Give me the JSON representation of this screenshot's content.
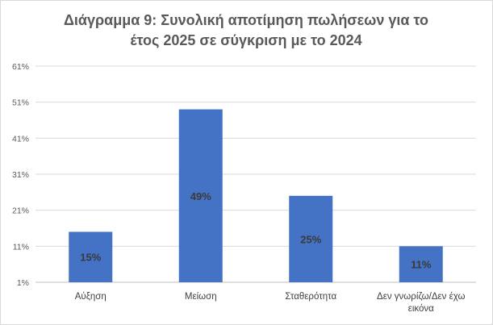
{
  "chart_data": {
    "type": "bar",
    "title_lines": [
      "Διάγραμμα 9: Συνολική αποτίμηση πωλήσεων για το",
      "έτος 2025 σε σύγκριση με το 2024"
    ],
    "categories": [
      [
        "Αύξηση"
      ],
      [
        "Μείωση"
      ],
      [
        "Σταθερότητα"
      ],
      [
        "Δεν γνωρίζω/Δεν έχω",
        "εικόνα"
      ]
    ],
    "values": [
      15,
      49,
      25,
      11
    ],
    "data_labels": [
      "15%",
      "49%",
      "25%",
      "11%"
    ],
    "ylim": [
      1,
      61
    ],
    "yticks": [
      1,
      11,
      21,
      31,
      41,
      51,
      61
    ],
    "ytick_labels": [
      "1%",
      "11%",
      "21%",
      "31%",
      "41%",
      "51%",
      "61%"
    ],
    "grid": true,
    "legend": "none",
    "colors": {
      "bar": "#4472c4",
      "grid": "#d9d9d9",
      "axis": "#bfbfbf"
    }
  }
}
